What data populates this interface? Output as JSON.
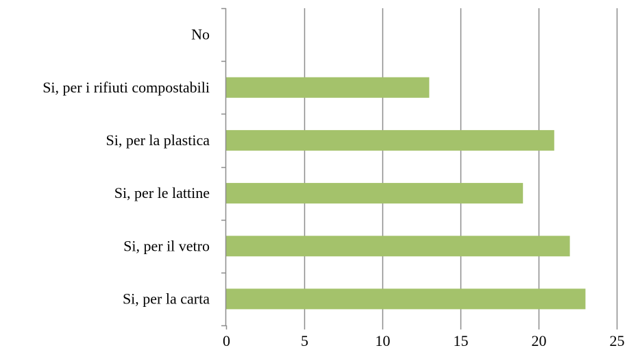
{
  "chart_data": {
    "type": "bar",
    "orientation": "horizontal",
    "title": "",
    "xlabel": "",
    "ylabel": "",
    "categories": [
      "No",
      "Si, per i rifiuti compostabili",
      "Si, per la plastica",
      "Si, per le lattine",
      "Si, per il vetro",
      "Si, per la carta"
    ],
    "values": [
      0,
      13,
      21,
      19,
      22,
      23
    ],
    "xlim": [
      0,
      25
    ],
    "xticks": [
      "0",
      "5",
      "10",
      "15",
      "20",
      "25"
    ],
    "grid": "vertical",
    "legend": "none",
    "colors": {
      "bar": "#a4c26b",
      "grid": "#8c8c8c",
      "axis": "#8c8c8c"
    }
  }
}
